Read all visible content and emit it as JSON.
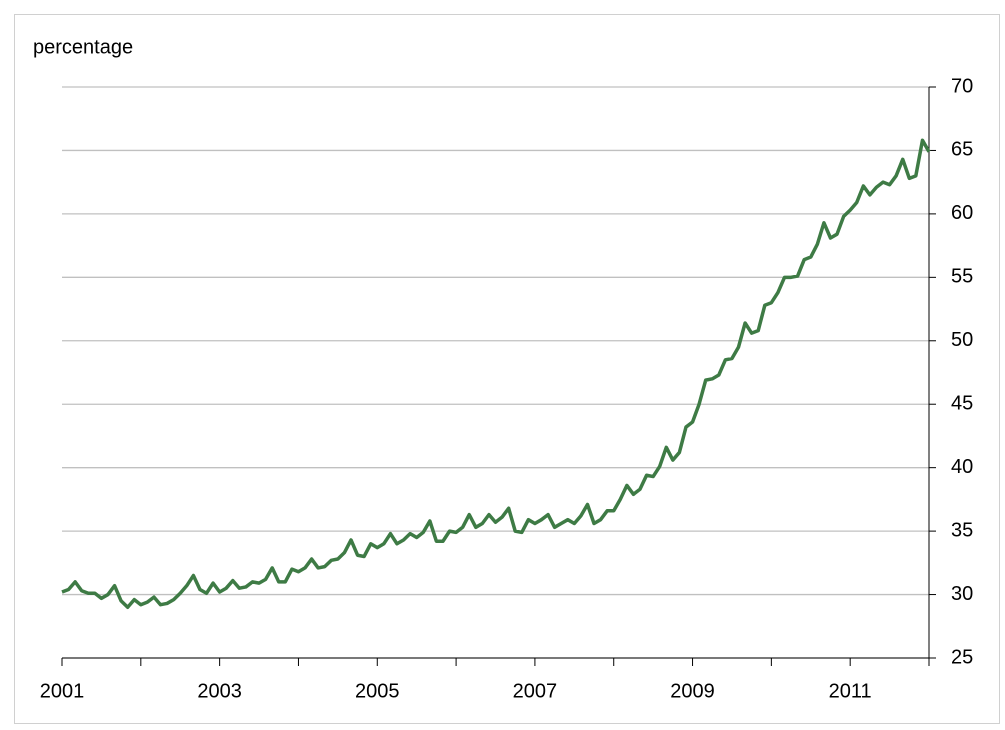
{
  "chart_data": {
    "type": "line",
    "y_label": "percentage",
    "xlim": [
      2001,
      2012
    ],
    "xticks": [
      2001,
      2003,
      2005,
      2007,
      2009,
      2011
    ],
    "xminor": [
      2002,
      2004,
      2006,
      2008,
      2010,
      2012
    ],
    "ylim": [
      25,
      70
    ],
    "yticks": [
      25,
      30,
      35,
      40,
      45,
      50,
      55,
      60,
      65,
      70
    ],
    "grid": true,
    "y_axis_side": "right",
    "series": [
      {
        "color": "#3e7b45",
        "x": [
          2001,
          2001.083,
          2001.167,
          2001.25,
          2001.333,
          2001.417,
          2001.5,
          2001.583,
          2001.667,
          2001.75,
          2001.833,
          2001.917,
          2002,
          2002.083,
          2002.167,
          2002.25,
          2002.333,
          2002.417,
          2002.5,
          2002.583,
          2002.667,
          2002.75,
          2002.833,
          2002.917,
          2003,
          2003.083,
          2003.167,
          2003.25,
          2003.333,
          2003.417,
          2003.5,
          2003.583,
          2003.667,
          2003.75,
          2003.833,
          2003.917,
          2004,
          2004.083,
          2004.167,
          2004.25,
          2004.333,
          2004.417,
          2004.5,
          2004.583,
          2004.667,
          2004.75,
          2004.833,
          2004.917,
          2005,
          2005.083,
          2005.167,
          2005.25,
          2005.333,
          2005.417,
          2005.5,
          2005.583,
          2005.667,
          2005.75,
          2005.833,
          2005.917,
          2006,
          2006.083,
          2006.167,
          2006.25,
          2006.333,
          2006.417,
          2006.5,
          2006.583,
          2006.667,
          2006.75,
          2006.833,
          2006.917,
          2007,
          2007.083,
          2007.167,
          2007.25,
          2007.333,
          2007.417,
          2007.5,
          2007.583,
          2007.667,
          2007.75,
          2007.833,
          2007.917,
          2008,
          2008.083,
          2008.167,
          2008.25,
          2008.333,
          2008.417,
          2008.5,
          2008.583,
          2008.667,
          2008.75,
          2008.833,
          2008.917,
          2009,
          2009.083,
          2009.167,
          2009.25,
          2009.333,
          2009.417,
          2009.5,
          2009.583,
          2009.667,
          2009.75,
          2009.833,
          2009.917,
          2010,
          2010.083,
          2010.167,
          2010.25,
          2010.333,
          2010.417,
          2010.5,
          2010.583,
          2010.667,
          2010.75,
          2010.833,
          2010.917,
          2011,
          2011.083,
          2011.167,
          2011.25,
          2011.333,
          2011.417,
          2011.5,
          2011.583,
          2011.667,
          2011.75,
          2011.833,
          2011.917,
          2012
        ],
        "values": [
          30.2,
          30.4,
          31.0,
          30.3,
          30.1,
          30.1,
          29.7,
          30.0,
          30.7,
          29.5,
          29.0,
          29.6,
          29.2,
          29.4,
          29.8,
          29.2,
          29.3,
          29.6,
          30.1,
          30.7,
          31.5,
          30.4,
          30.1,
          30.9,
          30.2,
          30.5,
          31.1,
          30.5,
          30.6,
          31.0,
          30.9,
          31.2,
          32.1,
          31.0,
          31.0,
          32.0,
          31.8,
          32.1,
          32.8,
          32.1,
          32.2,
          32.7,
          32.8,
          33.3,
          34.3,
          33.1,
          33.0,
          34.0,
          33.7,
          34.0,
          34.8,
          34.0,
          34.3,
          34.8,
          34.5,
          34.9,
          35.8,
          34.2,
          34.2,
          35.0,
          34.9,
          35.3,
          36.3,
          35.3,
          35.6,
          36.3,
          35.7,
          36.1,
          36.8,
          35.0,
          34.9,
          35.9,
          35.6,
          35.9,
          36.3,
          35.3,
          35.6,
          35.9,
          35.6,
          36.2,
          37.1,
          35.6,
          35.9,
          36.6,
          36.6,
          37.5,
          38.6,
          37.9,
          38.3,
          39.4,
          39.3,
          40.1,
          41.6,
          40.6,
          41.2,
          43.2,
          43.6,
          45.0,
          46.9,
          47.0,
          47.3,
          48.5,
          48.6,
          49.5,
          51.4,
          50.6,
          50.8,
          52.8,
          53.0,
          53.8,
          55.0,
          55.0,
          55.1,
          56.4,
          56.6,
          57.6,
          59.3,
          58.1,
          58.4,
          59.8,
          60.3,
          60.9,
          62.2,
          61.5,
          62.1,
          62.5,
          62.3,
          63.0,
          64.3,
          62.8,
          63.0,
          65.8,
          64.9
        ]
      }
    ]
  }
}
